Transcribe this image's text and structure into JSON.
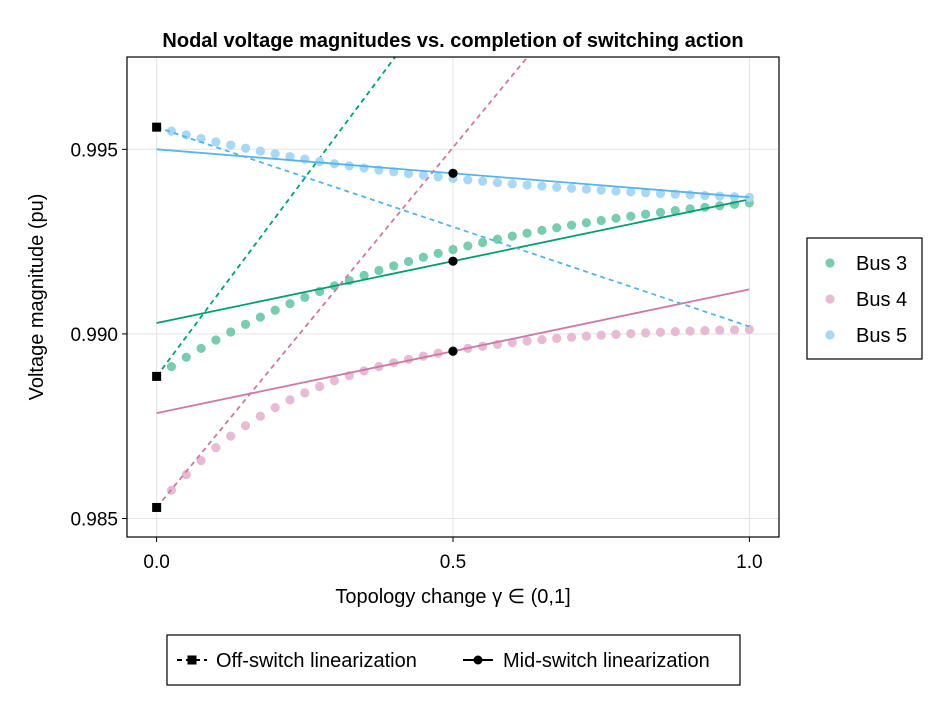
{
  "chart_data": {
    "type": "scatter",
    "title": "Nodal voltage magnitudes vs. completion of switching action",
    "xlabel": "Topology change γ ∈ (0,1]",
    "ylabel": "Voltage magnitude (pu)",
    "xlim": [
      -0.05,
      1.05
    ],
    "ylim": [
      0.9845,
      0.9975
    ],
    "x_ticks": [
      0.0,
      0.5,
      1.0
    ],
    "x_tick_labels": [
      "0.0",
      "0.5",
      "1.0"
    ],
    "y_ticks": [
      0.985,
      0.99,
      0.995
    ],
    "y_tick_labels": [
      "0.985",
      "0.990",
      "0.995"
    ],
    "grid": true,
    "n_points": 41,
    "series": [
      {
        "name": "Bus 3",
        "color": "#009E73",
        "point_color": "#7ACCAE",
        "start": 0.98885,
        "end": 0.99355,
        "decay": 2.0,
        "off_switch": {
          "x0": 0.0,
          "y0": 0.98885,
          "slope": 0.0215
        },
        "mid_switch": {
          "x0": 0.5,
          "y0": 0.99197,
          "slope": 0.00335
        }
      },
      {
        "name": "Bus 4",
        "color": "#CC79A7",
        "point_color": "#E6BBD3",
        "start": 0.9853,
        "end": 0.99012,
        "decay": 4.0,
        "off_switch": {
          "x0": 0.0,
          "y0": 0.9853,
          "slope": 0.0195
        },
        "mid_switch": {
          "x0": 0.5,
          "y0": 0.98953,
          "slope": 0.00335
        }
      },
      {
        "name": "Bus 5",
        "color": "#56B4E9",
        "point_color": "#A9D8F4",
        "start": 0.9956,
        "end": 0.9937,
        "decay": 2.0,
        "off_switch": {
          "x0": 0.0,
          "y0": 0.9956,
          "slope": -0.0054
        },
        "mid_switch": {
          "x0": 0.5,
          "y0": 0.99435,
          "slope": -0.0013
        }
      }
    ],
    "legend_series": [
      "Bus 3",
      "Bus 4",
      "Bus 5"
    ],
    "legend_lines": {
      "off_switch": "Off-switch linearization",
      "mid_switch": "Mid-switch linearization"
    }
  }
}
